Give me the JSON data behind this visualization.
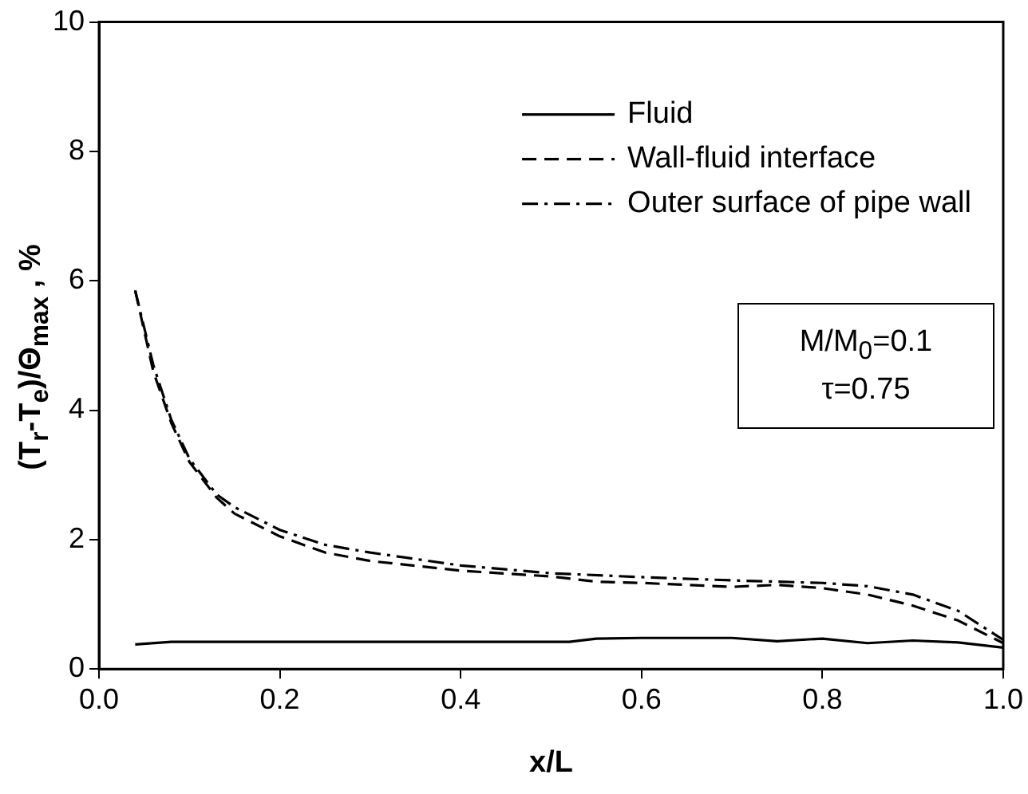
{
  "chart_data": {
    "type": "line",
    "xlabel": "x/L",
    "ylabel": "(T$_{r}$-T$_{e}$)/Θ$_{max}$ , %",
    "xlim": [
      0,
      1
    ],
    "xticks": [
      {
        "value": 0,
        "label": "0.0"
      },
      {
        "value": 0.2,
        "label": "0.2"
      },
      {
        "value": 0.4,
        "label": "0.4"
      },
      {
        "value": 0.6,
        "label": "0.6"
      },
      {
        "value": 0.8,
        "label": "0.8"
      },
      {
        "value": 1,
        "label": "1.0"
      }
    ],
    "ylim": [
      0,
      10
    ],
    "yticks": [
      0,
      2,
      4,
      6,
      8,
      10
    ],
    "grid": false,
    "legend": "top right",
    "marker": "none",
    "annotations": [
      "M/M$_{0}$=0.1",
      "τ=0.75"
    ],
    "series": [
      {
        "name": "Fluid",
        "color": "#000000",
        "line_style": "solid",
        "x": [
          0.04,
          0.08,
          0.3,
          0.52,
          0.55,
          0.6,
          0.7,
          0.75,
          0.8,
          0.85,
          0.9,
          0.95,
          1.0
        ],
        "values": [
          0.38,
          0.42,
          0.42,
          0.42,
          0.47,
          0.48,
          0.48,
          0.43,
          0.47,
          0.4,
          0.44,
          0.41,
          0.33
        ]
      },
      {
        "name": "Wall-fluid interface",
        "color": "#000000",
        "line_style": "dashed",
        "x": [
          0.04,
          0.06,
          0.08,
          0.1,
          0.13,
          0.15,
          0.2,
          0.25,
          0.3,
          0.4,
          0.5,
          0.55,
          0.6,
          0.7,
          0.75,
          0.8,
          0.85,
          0.9,
          0.95,
          1.0
        ],
        "values": [
          5.85,
          4.6,
          3.8,
          3.2,
          2.65,
          2.4,
          2.05,
          1.8,
          1.67,
          1.52,
          1.43,
          1.35,
          1.33,
          1.27,
          1.3,
          1.25,
          1.15,
          0.98,
          0.75,
          0.4
        ]
      },
      {
        "name": "Outer surface of pipe wall",
        "color": "#000000",
        "line_style": "dashdot",
        "x": [
          0.04,
          0.06,
          0.08,
          0.1,
          0.13,
          0.15,
          0.2,
          0.25,
          0.3,
          0.4,
          0.5,
          0.6,
          0.7,
          0.8,
          0.85,
          0.9,
          0.95,
          1.0
        ],
        "values": [
          5.85,
          4.7,
          3.85,
          3.25,
          2.7,
          2.5,
          2.15,
          1.92,
          1.8,
          1.6,
          1.48,
          1.42,
          1.37,
          1.33,
          1.28,
          1.15,
          0.9,
          0.45
        ]
      }
    ]
  }
}
